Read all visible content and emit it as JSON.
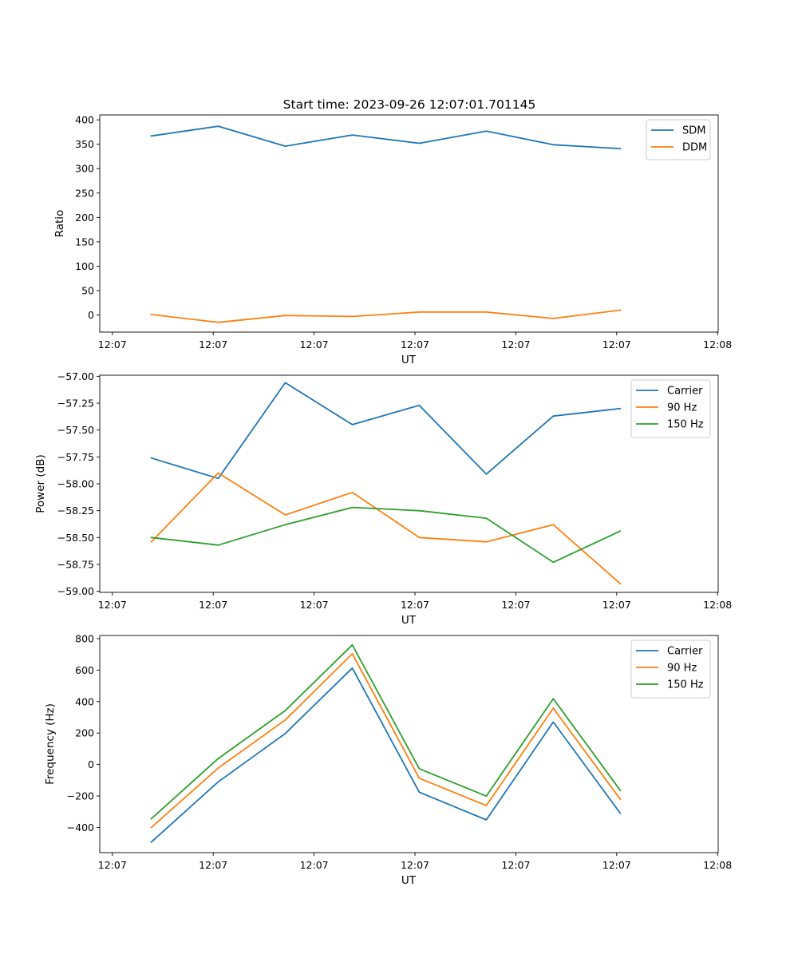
{
  "figure": {
    "title": "Start time: 2023-09-26 12:07:01.701145"
  },
  "chart_data": [
    {
      "type": "line",
      "title": "Start time: 2023-09-26 12:07:01.701145",
      "xlabel": "UT",
      "ylabel": "Ratio",
      "x_tick_labels": [
        "12:07",
        "12:07",
        "12:07",
        "12:07",
        "12:07",
        "12:07",
        "12:08"
      ],
      "xlim": [
        0,
        6
      ],
      "ylim": [
        -35,
        410
      ],
      "y_ticks": [
        0,
        50,
        100,
        150,
        200,
        250,
        300,
        350,
        400
      ],
      "x": [
        0.5,
        1.15,
        1.8,
        2.45,
        3.1,
        3.75,
        4.4,
        5.05
      ],
      "legend": "top-right",
      "series": [
        {
          "name": "SDM",
          "color": "#1f77b4",
          "values": [
            367,
            387,
            346,
            369,
            352,
            377,
            349,
            341
          ]
        },
        {
          "name": "DDM",
          "color": "#ff7f0e",
          "values": [
            1,
            -15,
            -1,
            -3,
            6,
            6,
            -7,
            10
          ]
        }
      ]
    },
    {
      "type": "line",
      "xlabel": "UT",
      "ylabel": "Power (dB)",
      "x_tick_labels": [
        "12:07",
        "12:07",
        "12:07",
        "12:07",
        "12:07",
        "12:07",
        "12:08"
      ],
      "xlim": [
        0,
        6
      ],
      "ylim": [
        -59.01,
        -56.99
      ],
      "y_ticks": [
        -59.0,
        -58.75,
        -58.5,
        -58.25,
        -58.0,
        -57.75,
        -57.5,
        -57.25,
        -57.0
      ],
      "y_tick_labels": [
        "−59.00",
        "−58.75",
        "−58.50",
        "−58.25",
        "−58.00",
        "−57.75",
        "−57.50",
        "−57.25",
        "−57.00"
      ],
      "x": [
        0.5,
        1.15,
        1.8,
        2.45,
        3.1,
        3.75,
        4.4,
        5.05
      ],
      "legend": "top-right",
      "series": [
        {
          "name": "Carrier",
          "color": "#1f77b4",
          "values": [
            -57.76,
            -57.95,
            -57.06,
            -57.45,
            -57.27,
            -57.91,
            -57.37,
            -57.3
          ]
        },
        {
          "name": "90 Hz",
          "color": "#ff7f0e",
          "values": [
            -58.54,
            -57.9,
            -58.29,
            -58.08,
            -58.5,
            -58.54,
            -58.38,
            -58.93
          ]
        },
        {
          "name": "150 Hz",
          "color": "#2ca02c",
          "values": [
            -58.5,
            -58.57,
            -58.38,
            -58.22,
            -58.25,
            -58.32,
            -58.73,
            -58.44
          ]
        }
      ]
    },
    {
      "type": "line",
      "xlabel": "UT",
      "ylabel": "Frequency (Hz)",
      "x_tick_labels": [
        "12:07",
        "12:07",
        "12:07",
        "12:07",
        "12:07",
        "12:07",
        "12:08"
      ],
      "xlim": [
        0,
        6
      ],
      "ylim": [
        -560,
        820
      ],
      "y_ticks": [
        -400,
        -200,
        0,
        200,
        400,
        600,
        800
      ],
      "y_tick_labels": [
        "−400",
        "−200",
        "0",
        "200",
        "400",
        "600",
        "800"
      ],
      "x": [
        0.5,
        1.15,
        1.8,
        2.45,
        3.1,
        3.75,
        4.4,
        5.05
      ],
      "legend": "top-right",
      "series": [
        {
          "name": "Carrier",
          "color": "#1f77b4",
          "values": [
            -493,
            -110,
            197,
            613,
            -176,
            -352,
            270,
            -310
          ]
        },
        {
          "name": "90 Hz",
          "color": "#ff7f0e",
          "values": [
            -400,
            -22,
            283,
            704,
            -87,
            -261,
            358,
            -221
          ]
        },
        {
          "name": "150 Hz",
          "color": "#2ca02c",
          "values": [
            -345,
            38,
            343,
            760,
            -27,
            -201,
            418,
            -165
          ]
        }
      ]
    }
  ]
}
